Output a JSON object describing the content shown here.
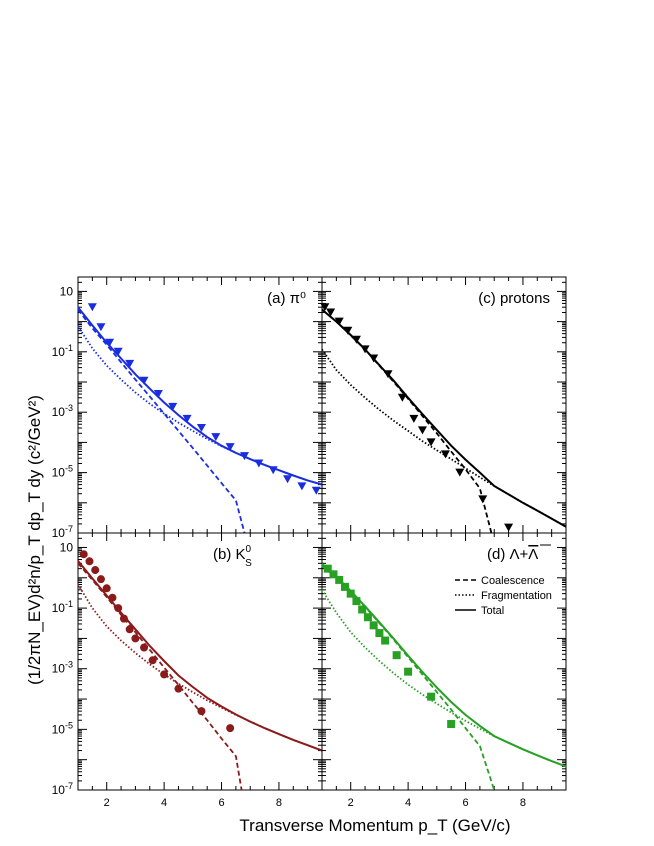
{
  "figure": {
    "ylabel": "(1/2πN_EV)d²n/p_T dp_T dy (c²/GeV²)",
    "xlabel": "Transverse Momentum p_T (GeV/c)",
    "legend": {
      "items": [
        {
          "label": "Coalescence",
          "style": "dashed"
        },
        {
          "label": "Fragmentation",
          "style": "dotted"
        },
        {
          "label": "Total",
          "style": "solid"
        }
      ],
      "placement": "panel-d-top-right"
    }
  },
  "chart_data": [
    {
      "panel": "a",
      "type": "scatter",
      "label": "(a)  π⁰",
      "color": "#1a2ee0",
      "marker": "triangle-down",
      "xlim": [
        1,
        9.5
      ],
      "ylog": true,
      "ylim": [
        1e-07,
        30
      ],
      "x_ticks": [
        2,
        4,
        6,
        8
      ],
      "y_ticks": [
        {
          "value": 10,
          "label": "10"
        },
        {
          "value": 0.1,
          "label": "10⁻¹"
        },
        {
          "value": 0.001,
          "label": "10⁻³"
        },
        {
          "value": 1e-05,
          "label": "10⁻⁵"
        },
        {
          "value": 1e-07,
          "label": "10⁻⁷"
        }
      ],
      "points": {
        "x": [
          1.5,
          1.8,
          2.1,
          2.4,
          2.8,
          3.3,
          3.8,
          4.3,
          4.8,
          5.3,
          5.8,
          6.3,
          6.8,
          7.3,
          7.8,
          8.3,
          8.8,
          9.3
        ],
        "y": [
          3.0,
          0.65,
          0.2,
          0.1,
          0.04,
          0.011,
          0.004,
          0.0015,
          0.0006,
          0.0003,
          0.00015,
          7e-05,
          3.5e-05,
          2e-05,
          1.2e-05,
          6e-06,
          3.5e-06,
          2.5e-06
        ]
      },
      "curves": {
        "coalescence": {
          "x": [
            1.0,
            1.5,
            2.0,
            2.5,
            3.0,
            3.5,
            4.0,
            4.5,
            5.0,
            5.5,
            6.0,
            6.5,
            6.8
          ],
          "y": [
            2.5,
            0.6,
            0.17,
            0.045,
            0.012,
            0.0033,
            0.0009,
            0.00024,
            6.5e-05,
            1.7e-05,
            4.5e-06,
            1.2e-06,
            1e-07
          ]
        },
        "fragmentation": {
          "x": [
            1.0,
            1.5,
            2.0,
            2.5,
            3.0,
            3.5,
            4.0,
            4.5,
            5.0,
            5.5,
            6.0,
            6.5,
            7.0,
            7.5,
            8.0,
            8.5,
            9.0,
            9.5
          ],
          "y": [
            0.7,
            0.13,
            0.035,
            0.012,
            0.0045,
            0.0019,
            0.0009,
            0.00045,
            0.00024,
            0.00013,
            7.5e-05,
            4.5e-05,
            2.8e-05,
            1.8e-05,
            1.2e-05,
            8e-06,
            5.5e-06,
            4e-06
          ]
        },
        "total": {
          "x": [
            1.0,
            1.5,
            2.0,
            2.5,
            3.0,
            3.5,
            4.0,
            4.5,
            5.0,
            5.5,
            6.0,
            6.5,
            7.0,
            7.5,
            8.0,
            8.5,
            9.0,
            9.5
          ],
          "y": [
            3.0,
            0.75,
            0.2,
            0.06,
            0.018,
            0.006,
            0.0021,
            0.0008,
            0.00033,
            0.00015,
            7.8e-05,
            4.5e-05,
            2.8e-05,
            1.8e-05,
            1.2e-05,
            8e-06,
            5.5e-06,
            4e-06
          ]
        }
      }
    },
    {
      "panel": "c",
      "type": "scatter",
      "label": "(c) protons",
      "color": "#000000",
      "marker": "triangle-down",
      "xlim": [
        1,
        9.5
      ],
      "ylog": true,
      "ylim": [
        1e-07,
        30
      ],
      "x_ticks": [
        2,
        4,
        6,
        8
      ],
      "y_ticks": [],
      "points": {
        "x": [
          1.1,
          1.3,
          1.6,
          1.9,
          2.2,
          2.5,
          2.8,
          3.3,
          3.8,
          4.2,
          4.5,
          4.8,
          5.3,
          5.8,
          6.6,
          7.5
        ],
        "y": [
          3.0,
          2.0,
          1.0,
          0.5,
          0.25,
          0.12,
          0.06,
          0.018,
          0.003,
          0.0006,
          0.00025,
          0.0001,
          4e-05,
          1e-05,
          1.3e-06,
          1.5e-07
        ]
      },
      "curves": {
        "coalescence": {
          "x": [
            1.0,
            1.5,
            2.0,
            2.5,
            3.0,
            3.5,
            4.0,
            4.5,
            5.0,
            5.5,
            6.0,
            6.5,
            6.9
          ],
          "y": [
            2.5,
            1.0,
            0.35,
            0.12,
            0.035,
            0.01,
            0.0028,
            0.00075,
            0.0002,
            5e-05,
            1.3e-05,
            3e-06,
            1e-07
          ]
        },
        "fragmentation": {
          "x": [
            1.0,
            1.5,
            2.0,
            2.5,
            3.0,
            3.5,
            4.0,
            4.5,
            5.0,
            5.5,
            6.0,
            6.5,
            7.0,
            7.5,
            8.0,
            8.5,
            9.0,
            9.5
          ],
          "y": [
            0.12,
            0.025,
            0.008,
            0.003,
            0.0012,
            0.00052,
            0.00024,
            0.00011,
            5.5e-05,
            2.8e-05,
            1.4e-05,
            7e-06,
            3.6e-06,
            1.9e-06,
            1e-06,
            5.5e-07,
            3e-07,
            1.6e-07
          ]
        },
        "total": {
          "x": [
            1.0,
            1.5,
            2.0,
            2.5,
            3.0,
            3.5,
            4.0,
            4.5,
            5.0,
            5.5,
            6.0,
            6.5,
            7.0,
            7.5,
            8.0,
            8.5,
            9.0,
            9.5
          ],
          "y": [
            2.5,
            1.0,
            0.36,
            0.12,
            0.036,
            0.011,
            0.003,
            0.00086,
            0.00026,
            7.8e-05,
            2.7e-05,
            1e-05,
            3.6e-06,
            1.9e-06,
            1e-06,
            5.5e-07,
            3e-07,
            1.6e-07
          ]
        }
      }
    },
    {
      "panel": "b",
      "type": "scatter",
      "label": "(b)  K⁰_S",
      "label_main": "(b)  K",
      "label_sup": "0",
      "label_sub": "S",
      "color": "#8b1a1a",
      "marker": "circle",
      "xlim": [
        1,
        9.5
      ],
      "ylog": true,
      "ylim": [
        1e-07,
        30
      ],
      "x_ticks": [
        2,
        4,
        6,
        8
      ],
      "y_ticks": [
        {
          "value": 10,
          "label": "10"
        },
        {
          "value": 0.1,
          "label": "10⁻¹"
        },
        {
          "value": 0.001,
          "label": "10⁻³"
        },
        {
          "value": 1e-05,
          "label": "10⁻⁵"
        },
        {
          "value": 1e-07,
          "label": "10⁻⁷"
        }
      ],
      "points": {
        "x": [
          1.2,
          1.4,
          1.6,
          1.8,
          2.0,
          2.2,
          2.4,
          2.6,
          2.8,
          3.0,
          3.3,
          3.6,
          4.0,
          4.5,
          5.3,
          6.3
        ],
        "y": [
          6.0,
          3.5,
          1.8,
          0.9,
          0.45,
          0.22,
          0.1,
          0.045,
          0.02,
          0.01,
          0.005,
          0.0019,
          0.00065,
          0.00022,
          4e-05,
          1.1e-05
        ]
      },
      "curves": {
        "coalescence": {
          "x": [
            1.0,
            1.5,
            2.0,
            2.5,
            3.0,
            3.5,
            4.0,
            4.5,
            5.0,
            5.5,
            6.0,
            6.5,
            6.7
          ],
          "y": [
            3.0,
            0.85,
            0.23,
            0.06,
            0.016,
            0.0042,
            0.0011,
            0.00029,
            7.5e-05,
            2e-05,
            5e-06,
            1.3e-06,
            1e-07
          ]
        },
        "fragmentation": {
          "x": [
            1.0,
            1.5,
            2.0,
            2.5,
            3.0,
            3.5,
            4.0,
            4.5,
            5.0,
            5.5,
            6.0,
            6.5,
            7.0,
            7.5,
            8.0,
            8.5,
            9.0,
            9.5
          ],
          "y": [
            0.6,
            0.1,
            0.025,
            0.0085,
            0.0033,
            0.0014,
            0.00065,
            0.00032,
            0.00017,
            9e-05,
            5.2e-05,
            3e-05,
            1.8e-05,
            1.1e-05,
            7e-06,
            4.5e-06,
            3e-06,
            2e-06
          ]
        },
        "total": {
          "x": [
            1.0,
            1.5,
            2.0,
            2.5,
            3.0,
            3.5,
            4.0,
            4.5,
            5.0,
            5.5,
            6.0,
            6.5,
            7.0,
            7.5,
            8.0,
            8.5,
            9.0,
            9.5
          ],
          "y": [
            3.6,
            0.95,
            0.26,
            0.07,
            0.02,
            0.0056,
            0.0018,
            0.0006,
            0.00025,
            0.00011,
            5.7e-05,
            3.1e-05,
            1.8e-05,
            1.1e-05,
            7e-06,
            4.5e-06,
            3e-06,
            2e-06
          ]
        }
      }
    },
    {
      "panel": "d",
      "type": "scatter",
      "label": "(d) Λ+Λ̄",
      "label_main": "(d) Λ+",
      "label_bar": "Λ",
      "color": "#27a023",
      "marker": "square",
      "xlim": [
        1,
        9.5
      ],
      "ylog": true,
      "ylim": [
        1e-07,
        30
      ],
      "x_ticks": [
        2,
        4,
        6,
        8
      ],
      "y_ticks": [],
      "points": {
        "x": [
          1.2,
          1.4,
          1.6,
          1.8,
          2.0,
          2.2,
          2.4,
          2.6,
          2.8,
          3.0,
          3.2,
          3.6,
          4.0,
          4.8,
          5.5
        ],
        "y": [
          2.0,
          1.3,
          0.85,
          0.5,
          0.3,
          0.17,
          0.09,
          0.05,
          0.027,
          0.015,
          0.0085,
          0.0028,
          0.0008,
          0.00012,
          1.5e-05
        ]
      },
      "curves": {
        "coalescence": {
          "x": [
            1.0,
            1.5,
            2.0,
            2.5,
            3.0,
            3.5,
            4.0,
            4.5,
            5.0,
            5.5,
            6.0,
            6.5,
            7.0
          ],
          "y": [
            2.5,
            1.0,
            0.35,
            0.11,
            0.032,
            0.009,
            0.0024,
            0.00064,
            0.00017,
            4.5e-05,
            1.1e-05,
            2.8e-06,
            1e-07
          ]
        },
        "fragmentation": {
          "x": [
            1.0,
            1.5,
            2.0,
            2.5,
            3.0,
            3.5,
            4.0,
            4.5,
            5.0,
            5.5,
            6.0,
            6.5,
            7.0,
            7.5,
            8.0,
            8.5,
            9.0,
            9.5
          ],
          "y": [
            0.4,
            0.07,
            0.016,
            0.005,
            0.0018,
            0.0007,
            0.0003,
            0.00014,
            7e-05,
            3.6e-05,
            1.9e-05,
            1.05e-05,
            6e-06,
            3.6e-06,
            2.2e-06,
            1.4e-06,
            9e-07,
            6e-07
          ]
        },
        "total": {
          "x": [
            1.0,
            1.5,
            2.0,
            2.5,
            3.0,
            3.5,
            4.0,
            4.5,
            5.0,
            5.5,
            6.0,
            6.5,
            7.0,
            7.5,
            8.0,
            8.5,
            9.0,
            9.5
          ],
          "y": [
            2.9,
            1.07,
            0.37,
            0.115,
            0.034,
            0.0097,
            0.0027,
            0.00078,
            0.00024,
            8e-05,
            3e-05,
            1.3e-05,
            6e-06,
            3.6e-06,
            2.2e-06,
            1.4e-06,
            9e-07,
            6e-07
          ]
        }
      }
    }
  ]
}
